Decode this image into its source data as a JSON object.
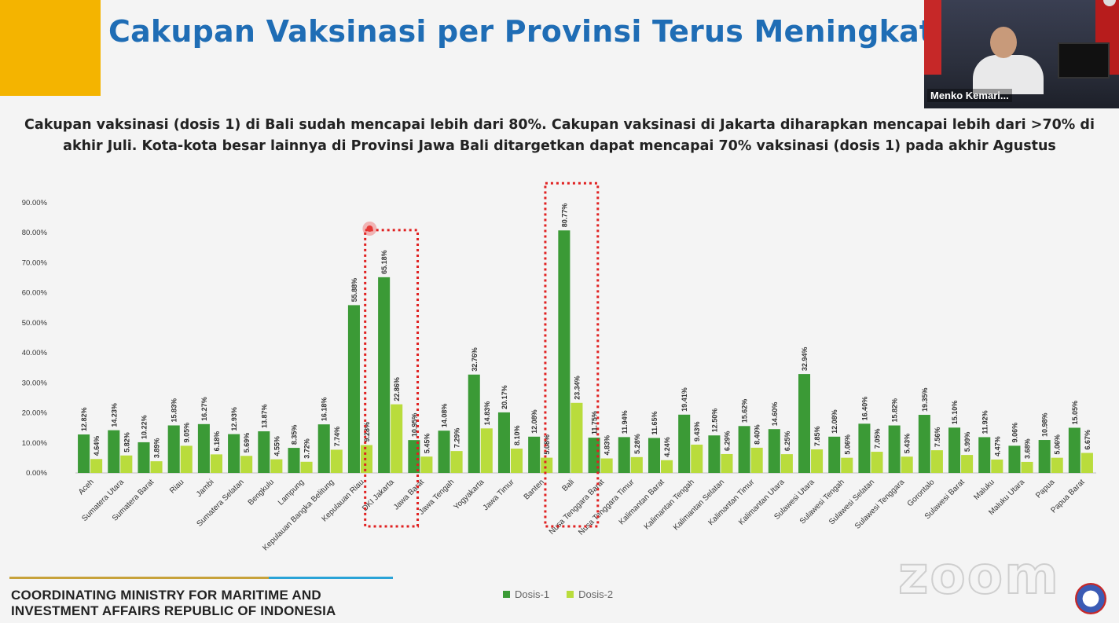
{
  "slide": {
    "title": "Cakupan Vaksinasi per Provinsi Terus Meningkat",
    "description_line1": "Cakupan vaksinasi (dosis 1) di Bali sudah mencapai lebih dari 80%. Cakupan vaksinasi di Jakarta diharapkan mencapai lebih dari >70% di",
    "description_line2": "akhir Juli. Kota-kota besar lainnya di Provinsi Jawa Bali ditargetkan dapat mencapai 70% vaksinasi (dosis 1) pada akhir Agustus",
    "footer_line1": "COORDINATING MINISTRY FOR MARITIME AND",
    "footer_line2": "INVESTMENT AFFAIRS REPUBLIC OF INDONESIA",
    "video_name": "Menko Kemari...",
    "watermark": "zoom"
  },
  "colors": {
    "dosis1": "#3b9a36",
    "dosis2": "#b9dc3c",
    "highlight": "#e02020",
    "title": "#1f6db5",
    "accent": "#f4b400"
  },
  "chart_data": {
    "type": "bar",
    "categories": [
      "Aceh",
      "Sumatera Utara",
      "Sumatera Barat",
      "Riau",
      "Jambi",
      "Sumatera Selatan",
      "Bengkulu",
      "Lampung",
      "Kepulauan Bangka Belitung",
      "Kepulauan Riau",
      "DKI Jakarta",
      "Jawa Barat",
      "Jawa Tengah",
      "Yogyakarta",
      "Jawa Timur",
      "Banten",
      "Bali",
      "Nusa Tenggara Barat",
      "Nusa Tenggara Timur",
      "Kalimantan Barat",
      "Kalimantan Tengah",
      "Kalimantan Selatan",
      "Kalimantan Timur",
      "Kalimantan Utara",
      "Sulawesi Utara",
      "Sulawesi Tengah",
      "Sulawesi Selatan",
      "Sulawesi Tenggara",
      "Gorontalo",
      "Sulawesi Barat",
      "Maluku",
      "Maluku Utara",
      "Papua",
      "Papua Barat"
    ],
    "series": [
      {
        "name": "Dosis-1",
        "values": [
          12.82,
          14.23,
          10.22,
          15.83,
          16.27,
          12.93,
          13.87,
          8.35,
          16.18,
          55.88,
          65.18,
          10.95,
          14.08,
          32.76,
          20.17,
          12.08,
          80.77,
          11.75,
          11.94,
          11.65,
          19.41,
          12.5,
          15.62,
          14.6,
          32.94,
          12.08,
          16.4,
          15.82,
          19.35,
          15.1,
          11.92,
          9.06,
          10.98,
          15.05
        ],
        "labels": [
          "12.82%",
          "14.23%",
          "10.22%",
          "15.83%",
          "16.27%",
          "12.93%",
          "13.87%",
          "8.35%",
          "16.18%",
          "55.88%",
          "65.18%",
          "10.95%",
          "14.08%",
          "32.76%",
          "20.17%",
          "12.08%",
          "80.77%",
          "11.75%",
          "11.94%",
          "11.65%",
          "19.41%",
          "12.50%",
          "15.62%",
          "14.60%",
          "32.94%",
          "12.08%",
          "16.40%",
          "15.82%",
          "19.35%",
          "15.10%",
          "11.92%",
          "9.06%",
          "10.98%",
          "15.05%"
        ]
      },
      {
        "name": "Dosis-2",
        "values": [
          4.64,
          5.82,
          3.89,
          9.05,
          6.18,
          5.69,
          4.55,
          3.72,
          7.74,
          9.28,
          22.86,
          5.45,
          7.29,
          14.83,
          8.1,
          5.08,
          23.34,
          4.83,
          5.28,
          4.24,
          9.43,
          6.29,
          8.4,
          6.25,
          7.85,
          5.06,
          7.05,
          5.43,
          7.56,
          5.99,
          4.47,
          3.68,
          5.06,
          6.67
        ],
        "labels": [
          "4.64%",
          "5.82%",
          "3.89%",
          "9.05%",
          "6.18%",
          "5.69%",
          "4.55%",
          "3.72%",
          "7.74%",
          "9.28%",
          "22.86%",
          "5.45%",
          "7.29%",
          "14.83%",
          "8.10%",
          "5.08%",
          "23.34%",
          "4.83%",
          "5.28%",
          "4.24%",
          "9.43%",
          "6.29%",
          "8.40%",
          "6.25%",
          "7.85%",
          "5.06%",
          "7.05%",
          "5.43%",
          "7.56%",
          "5.99%",
          "4.47%",
          "3.68%",
          "5.06%",
          "6.67%"
        ]
      }
    ],
    "yticks": [
      "0.00%",
      "10.00%",
      "20.00%",
      "30.00%",
      "40.00%",
      "50.00%",
      "60.00%",
      "70.00%",
      "80.00%",
      "90.00%"
    ],
    "ylim": [
      0,
      90
    ],
    "grid": false,
    "legend_position": "bottom-center",
    "highlighted_categories": [
      "DKI Jakarta",
      "Bali"
    ]
  }
}
